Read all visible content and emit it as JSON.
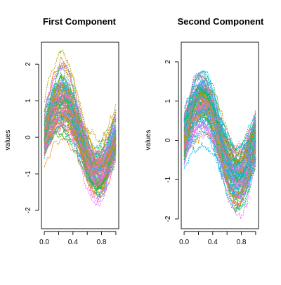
{
  "chart_data": [
    {
      "type": "line",
      "title": "First Component",
      "xlabel": "",
      "ylabel": "values",
      "xlim": [
        -0.04,
        1.04
      ],
      "ylim": [
        -2.5,
        2.6
      ],
      "xticks": [
        0.0,
        0.4,
        0.8
      ],
      "xtick_labels": [
        "0.0",
        "0.4",
        "0.8"
      ],
      "yticks": [
        -2,
        -1,
        0,
        1,
        2
      ],
      "ytick_labels": [
        "-2",
        "-1",
        "0",
        "1",
        "2"
      ],
      "grid": false,
      "series_count": 100,
      "curve_model": "y = offset + amplitude*sin(2*pi*x) + noise",
      "x_range": [
        0.0,
        1.0
      ],
      "mean_peak": {
        "x": 0.25,
        "y": 0.95
      },
      "mean_trough": {
        "x": 0.75,
        "y": -1.05
      },
      "y_envelope": {
        "max": 2.45,
        "min": -2.3
      },
      "colors": [
        "#F8766D",
        "#E58700",
        "#C99800",
        "#A3A500",
        "#6BB100",
        "#00BA38",
        "#00BF7D",
        "#00C0AF",
        "#00BCD8",
        "#00B0F6",
        "#619CFF",
        "#B983FF",
        "#E76BF3",
        "#FD61D1",
        "#FF67A4"
      ]
    },
    {
      "type": "line",
      "title": "Second Component",
      "xlabel": "",
      "ylabel": "values",
      "xlim": [
        -0.04,
        1.04
      ],
      "ylim": [
        -2.25,
        2.5
      ],
      "xticks": [
        0.0,
        0.4,
        0.8
      ],
      "xtick_labels": [
        "0.0",
        "0.4",
        "0.8"
      ],
      "yticks": [
        -2,
        -1,
        0,
        1,
        2
      ],
      "ytick_labels": [
        "-2",
        "-1",
        "0",
        "1",
        "2"
      ],
      "grid": false,
      "series_count": 100,
      "curve_model": "y = offset + amplitude*sin(2*pi*x) + noise",
      "x_range": [
        0.0,
        1.0
      ],
      "mean_peak": {
        "x": 0.25,
        "y": 1.0
      },
      "mean_trough": {
        "x": 0.75,
        "y": -1.0
      },
      "y_envelope": {
        "max": 2.3,
        "min": -2.0
      },
      "colors": [
        "#F8766D",
        "#E58700",
        "#C99800",
        "#A3A500",
        "#6BB100",
        "#00BA38",
        "#00BF7D",
        "#00C0AF",
        "#00BCD8",
        "#00B0F6",
        "#619CFF",
        "#B983FF",
        "#E76BF3",
        "#FD61D1",
        "#FF67A4"
      ]
    }
  ]
}
